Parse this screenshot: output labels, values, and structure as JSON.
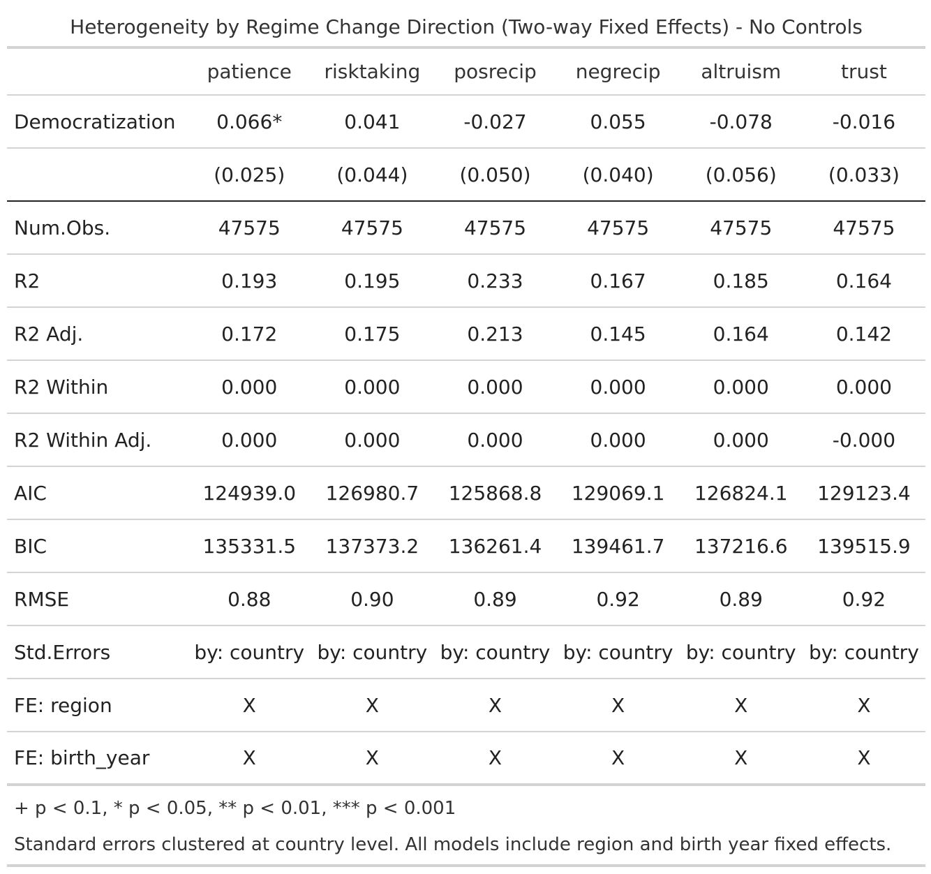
{
  "title": "Heterogeneity by Regime Change Direction (Two-way Fixed Effects) - No Controls",
  "columns": [
    "patience",
    "risktaking",
    "posrecip",
    "negrecip",
    "altruism",
    "trust"
  ],
  "rows": [
    {
      "label": "Democratization",
      "values": [
        "0.066*",
        "0.041",
        "-0.027",
        "0.055",
        "-0.078",
        "-0.016"
      ]
    },
    {
      "label": "",
      "values": [
        "(0.025)",
        "(0.044)",
        "(0.050)",
        "(0.040)",
        "(0.056)",
        "(0.033)"
      ]
    },
    {
      "label": "Num.Obs.",
      "values": [
        "47575",
        "47575",
        "47575",
        "47575",
        "47575",
        "47575"
      ]
    },
    {
      "label": "R2",
      "values": [
        "0.193",
        "0.195",
        "0.233",
        "0.167",
        "0.185",
        "0.164"
      ]
    },
    {
      "label": "R2 Adj.",
      "values": [
        "0.172",
        "0.175",
        "0.213",
        "0.145",
        "0.164",
        "0.142"
      ]
    },
    {
      "label": "R2 Within",
      "values": [
        "0.000",
        "0.000",
        "0.000",
        "0.000",
        "0.000",
        "0.000"
      ]
    },
    {
      "label": "R2 Within Adj.",
      "values": [
        "0.000",
        "0.000",
        "0.000",
        "0.000",
        "0.000",
        "-0.000"
      ]
    },
    {
      "label": "AIC",
      "values": [
        "124939.0",
        "126980.7",
        "125868.8",
        "129069.1",
        "126824.1",
        "129123.4"
      ]
    },
    {
      "label": "BIC",
      "values": [
        "135331.5",
        "137373.2",
        "136261.4",
        "139461.7",
        "137216.6",
        "139515.9"
      ]
    },
    {
      "label": "RMSE",
      "values": [
        "0.88",
        "0.90",
        "0.89",
        "0.92",
        "0.89",
        "0.92"
      ]
    },
    {
      "label": "Std.Errors",
      "values": [
        "by: country",
        "by: country",
        "by: country",
        "by: country",
        "by: country",
        "by: country"
      ]
    },
    {
      "label": "FE: region",
      "values": [
        "X",
        "X",
        "X",
        "X",
        "X",
        "X"
      ]
    },
    {
      "label": "FE: birth_year",
      "values": [
        "X",
        "X",
        "X",
        "X",
        "X",
        "X"
      ]
    }
  ],
  "notes": {
    "significance": "+ p < 0.1, * p < 0.05, ** p < 0.01, *** p < 0.001",
    "description": "Standard errors clustered at country level. All models include region and birth year fixed effects."
  }
}
